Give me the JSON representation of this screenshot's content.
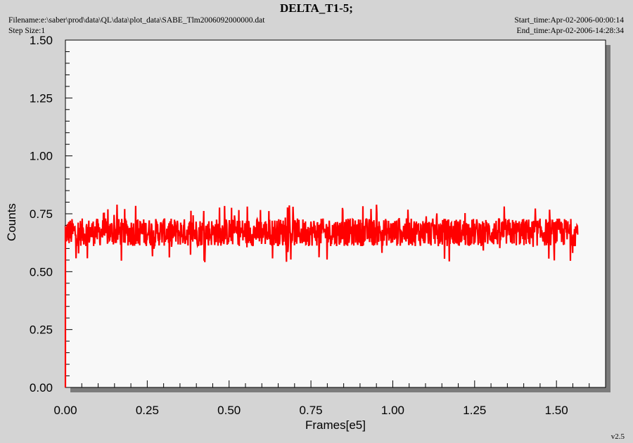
{
  "header": {
    "title": "DELTA_T1-5;",
    "filename": "Filename:e:\\saber\\prod\\data\\QL\\data\\plot_data\\SABE_Tlm2006092000000.dat",
    "step_size": "Step Size:1",
    "start_time": "Start_time:Apr-02-2006-00:00:14",
    "end_time": "End_time:Apr-02-2006-14:28:34"
  },
  "footer": {
    "version": "v2.5"
  },
  "colors": {
    "series": "#ff0000",
    "plot_bg": "#f8f8f8",
    "frame_shadow": "#7c7c7c",
    "page_bg": "#d4d4d4"
  },
  "chart_data": {
    "type": "line",
    "title": "DELTA_T1-5;",
    "xlabel": "Frames[e5]",
    "ylabel": "Counts",
    "xlim": [
      0,
      1.65
    ],
    "ylim": [
      0,
      1.5
    ],
    "x_ticks": [
      "0.00",
      "0.25",
      "0.50",
      "0.75",
      "1.00",
      "1.25",
      "1.50"
    ],
    "y_ticks": [
      "0.00",
      "0.25",
      "0.50",
      "0.75",
      "1.00",
      "1.25",
      "1.50"
    ],
    "grid": false,
    "series": [
      {
        "color": "#ff0000",
        "x_range": [
          0,
          1.565
        ],
        "baseline": 0.67,
        "band": [
          0.61,
          0.73
        ],
        "min": 0.54,
        "max": 0.79,
        "initial_drop_to": 0.0
      }
    ]
  }
}
